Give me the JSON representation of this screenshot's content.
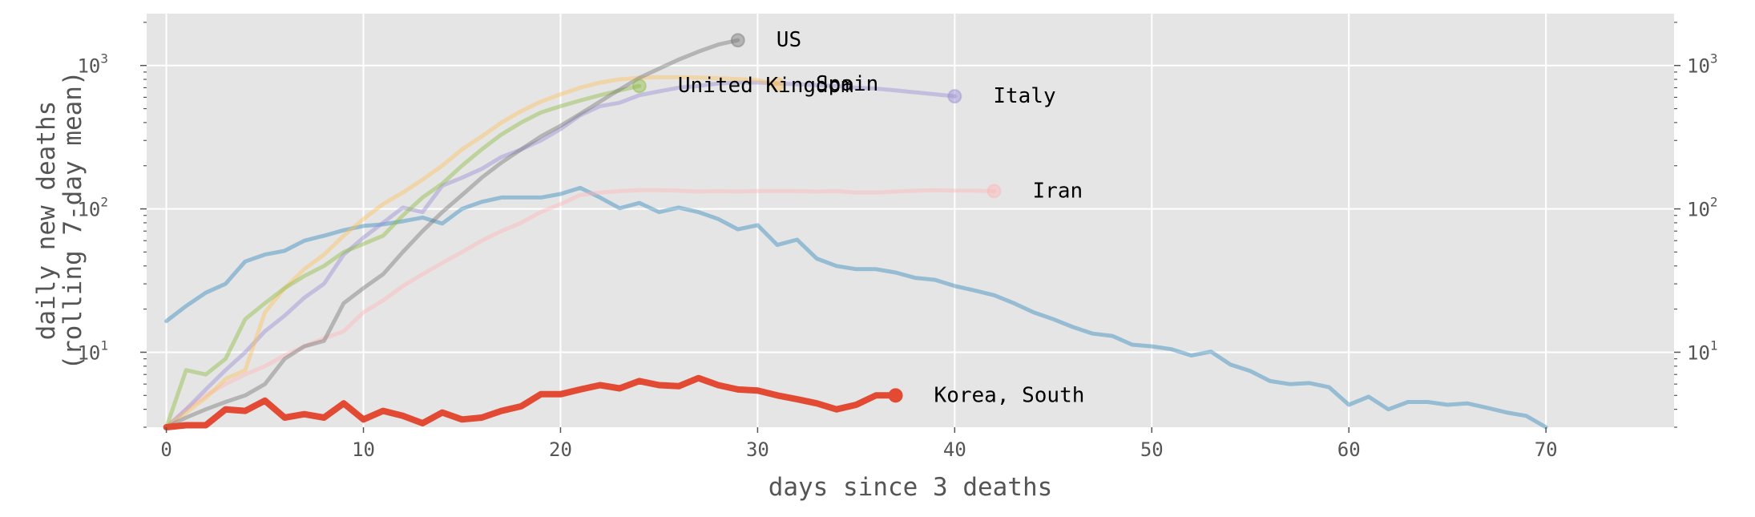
{
  "chart_data": {
    "type": "line",
    "title": "",
    "xlabel": "days since 3 deaths",
    "ylabel": [
      "daily new deaths",
      "(rolling 7-day mean)"
    ],
    "xlim": [
      -1,
      76.5
    ],
    "ylim": [
      3,
      2300
    ],
    "yscale": "log",
    "x_ticks": [
      0,
      10,
      20,
      30,
      40,
      50,
      60,
      70
    ],
    "y_ticks": [
      {
        "value": 10,
        "base": "10",
        "exp": "1"
      },
      {
        "value": 100,
        "base": "10",
        "exp": "2"
      },
      {
        "value": 1000,
        "base": "10",
        "exp": "3"
      }
    ],
    "grid": true,
    "background": "#e5e5e5",
    "series": [
      {
        "name": "Korea, South",
        "color": "#e24a33",
        "alpha": 1,
        "width": 8,
        "highlight": true,
        "values": [
          3.0,
          3.1,
          3.1,
          4.0,
          3.9,
          4.6,
          3.5,
          3.7,
          3.5,
          4.4,
          3.4,
          3.9,
          3.6,
          3.2,
          3.8,
          3.4,
          3.5,
          3.9,
          4.2,
          5.1,
          5.1,
          5.5,
          5.9,
          5.6,
          6.3,
          5.9,
          5.8,
          6.6,
          5.9,
          5.5,
          5.4,
          5.0,
          4.7,
          4.4,
          4.0,
          4.3,
          5.0,
          5.0
        ]
      },
      {
        "name": "",
        "color": "#348abd",
        "alpha": 0.45,
        "width": 5,
        "highlight": false,
        "values": [
          16.5,
          21,
          26,
          30,
          43,
          48,
          51,
          60,
          65,
          71,
          76,
          78,
          82,
          87,
          79,
          100,
          112,
          120,
          120,
          120,
          127,
          140,
          120,
          101,
          110,
          95,
          102,
          95,
          85,
          72,
          77,
          56,
          61,
          45,
          40,
          38,
          38,
          36,
          33,
          32,
          29,
          27,
          25,
          22,
          19,
          17,
          15,
          13.5,
          13,
          11.3,
          11,
          10.5,
          9.5,
          10.1,
          8.2,
          7.4,
          6.3,
          6.0,
          6.1,
          5.7,
          4.3,
          4.9,
          4.0,
          4.5,
          4.5,
          4.3,
          4.4,
          4.1,
          3.8,
          3.6,
          3.0
        ]
      },
      {
        "name": "Iran",
        "color": "#ffb5b8",
        "alpha": 0.45,
        "width": 5,
        "highlight": false,
        "values": [
          3.0,
          4.0,
          5.0,
          6.0,
          7.0,
          8.0,
          9.5,
          11,
          12.5,
          14,
          19,
          23,
          29,
          35,
          42,
          50,
          60,
          70,
          80,
          95,
          108,
          125,
          130,
          133,
          135,
          135,
          134,
          132,
          133,
          132,
          133,
          133,
          133,
          132,
          133,
          130,
          130,
          132,
          134,
          135,
          134,
          134,
          133
        ]
      },
      {
        "name": "Italy",
        "color": "#988ed5",
        "alpha": 0.45,
        "width": 5,
        "highlight": false,
        "values": [
          3.0,
          4.0,
          5.5,
          7.5,
          10,
          14,
          18,
          24,
          30,
          48,
          63,
          80,
          102,
          95,
          145,
          165,
          190,
          230,
          260,
          300,
          360,
          450,
          520,
          550,
          620,
          660,
          700,
          720,
          750,
          760,
          760,
          750,
          740,
          730,
          720,
          700,
          690,
          670,
          650,
          630,
          610
        ]
      },
      {
        "name": "Spain",
        "color": "#fbc15e",
        "alpha": 0.45,
        "width": 5,
        "highlight": false,
        "values": [
          3.0,
          3.8,
          4.8,
          6.5,
          7.5,
          19,
          28,
          38,
          48,
          65,
          85,
          108,
          130,
          160,
          200,
          260,
          320,
          400,
          480,
          560,
          630,
          700,
          760,
          800,
          820,
          830,
          830,
          825,
          815,
          805,
          790,
          740
        ]
      },
      {
        "name": "United Kingdom",
        "color": "#8eba42",
        "alpha": 0.45,
        "width": 5,
        "highlight": false,
        "values": [
          3.0,
          7.5,
          7.0,
          9.0,
          17,
          22,
          28,
          34,
          40,
          50,
          57,
          65,
          90,
          120,
          150,
          200,
          260,
          330,
          400,
          470,
          520,
          570,
          620,
          670,
          720
        ]
      },
      {
        "name": "US",
        "color": "#777777",
        "alpha": 0.45,
        "width": 5,
        "highlight": false,
        "values": [
          3.0,
          3.5,
          4.0,
          4.5,
          5.0,
          6.0,
          9.0,
          11,
          12,
          22,
          28,
          35,
          50,
          70,
          95,
          125,
          165,
          210,
          260,
          320,
          380,
          460,
          560,
          680,
          820,
          950,
          1100,
          1250,
          1400,
          1500
        ]
      }
    ]
  }
}
